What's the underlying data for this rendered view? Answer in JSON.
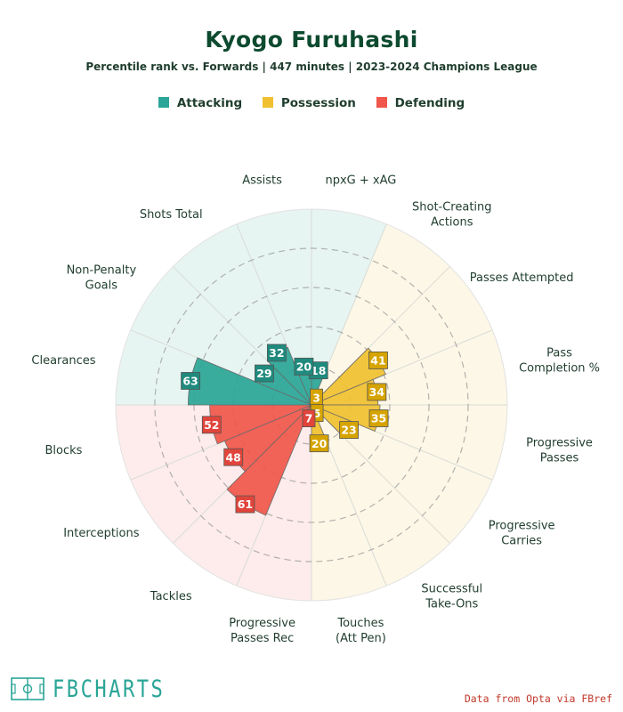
{
  "title": "Kyogo Furuhashi",
  "subtitle": "Percentile rank vs. Forwards | 447 minutes | 2023-2024 Champions League",
  "legend": [
    {
      "label": "Attacking",
      "color": "#2aa597"
    },
    {
      "label": "Possession",
      "color": "#f0c030"
    },
    {
      "label": "Defending",
      "color": "#f0564a"
    }
  ],
  "chart_data": {
    "type": "radar-bar",
    "title": "Kyogo Furuhashi",
    "rlim": [
      0,
      100
    ],
    "grid": true,
    "categories": [
      {
        "label": "npxG + xAG",
        "value": 18,
        "group": "Attacking"
      },
      {
        "label": "Shot-Creating Actions",
        "value": 3,
        "group": "Possession"
      },
      {
        "label": "Passes Attempted",
        "value": 41,
        "group": "Possession"
      },
      {
        "label": "Pass Completion %",
        "value": 34,
        "group": "Possession"
      },
      {
        "label": "Progressive Passes",
        "value": 35,
        "group": "Possession"
      },
      {
        "label": "Progressive Carries",
        "value": 23,
        "group": "Possession"
      },
      {
        "label": "Successful Take-Ons",
        "value": 5,
        "group": "Possession"
      },
      {
        "label": "Touches (Att Pen)",
        "value": 20,
        "group": "Possession"
      },
      {
        "label": "Progressive Passes Rec",
        "value": 7,
        "group": "Defending"
      },
      {
        "label": "Tackles",
        "value": 61,
        "group": "Defending"
      },
      {
        "label": "Interceptions",
        "value": 48,
        "group": "Defending"
      },
      {
        "label": "Blocks",
        "value": 52,
        "group": "Defending"
      },
      {
        "label": "Clearances",
        "value": 63,
        "group": "Attacking"
      },
      {
        "label": "Non-Penalty Goals",
        "value": 29,
        "group": "Attacking"
      },
      {
        "label": "Shots Total",
        "value": 32,
        "group": "Attacking"
      },
      {
        "label": "Assists",
        "value": 20,
        "group": "Attacking"
      }
    ],
    "group_colors": {
      "Attacking": {
        "bar": "#2aa597",
        "bg": "#e7f5f2",
        "label": "#1f8a7d"
      },
      "Possession": {
        "bar": "#f0c030",
        "bg": "#fdf7e7",
        "label": "#d6a400"
      },
      "Defending": {
        "bar": "#f0564a",
        "bg": "#fdeceb",
        "label": "#e0443a"
      }
    }
  },
  "brand": {
    "name": "FBCHARTS",
    "logo_icon": "pitch-icon"
  },
  "source": "Data from Opta via FBref"
}
